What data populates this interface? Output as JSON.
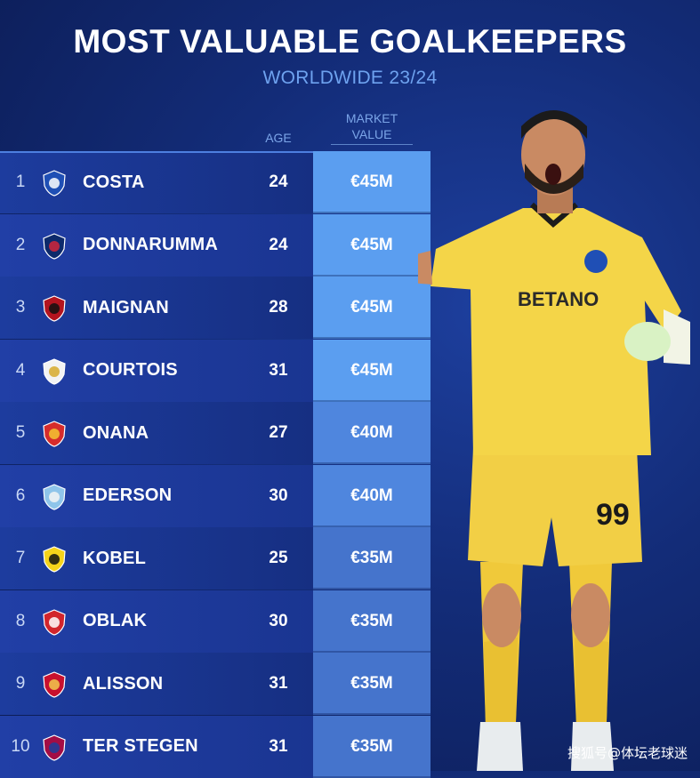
{
  "header": {
    "title": "MOST VALUABLE GOALKEEPERS",
    "subtitle": "WORLDWIDE 23/24"
  },
  "columns": {
    "age": "AGE",
    "market_value": "MARKET\nVALUE"
  },
  "chart_data": {
    "type": "table",
    "title": "MOST VALUABLE GOALKEEPERS",
    "subtitle": "WORLDWIDE 23/24",
    "columns": [
      "AGE",
      "MARKET VALUE"
    ],
    "rows": [
      {
        "rank": "1",
        "name": "COSTA",
        "club_icon": "porto-crest-icon",
        "age": "24",
        "value": "€45M",
        "value_num": 45
      },
      {
        "rank": "2",
        "name": "DONNARUMMA",
        "club_icon": "psg-crest-icon",
        "age": "24",
        "value": "€45M",
        "value_num": 45
      },
      {
        "rank": "3",
        "name": "MAIGNAN",
        "club_icon": "ac-milan-crest-icon",
        "age": "28",
        "value": "€45M",
        "value_num": 45
      },
      {
        "rank": "4",
        "name": "COURTOIS",
        "club_icon": "real-madrid-crest-icon",
        "age": "31",
        "value": "€45M",
        "value_num": 45
      },
      {
        "rank": "5",
        "name": "ONANA",
        "club_icon": "man-united-crest-icon",
        "age": "27",
        "value": "€40M",
        "value_num": 40
      },
      {
        "rank": "6",
        "name": "EDERSON",
        "club_icon": "man-city-crest-icon",
        "age": "30",
        "value": "€40M",
        "value_num": 40
      },
      {
        "rank": "7",
        "name": "KOBEL",
        "club_icon": "dortmund-crest-icon",
        "age": "25",
        "value": "€35M",
        "value_num": 35
      },
      {
        "rank": "8",
        "name": "OBLAK",
        "club_icon": "atletico-crest-icon",
        "age": "30",
        "value": "€35M",
        "value_num": 35
      },
      {
        "rank": "9",
        "name": "ALISSON",
        "club_icon": "liverpool-crest-icon",
        "age": "31",
        "value": "€35M",
        "value_num": 35
      },
      {
        "rank": "10",
        "name": "TER STEGEN",
        "club_icon": "barcelona-crest-icon",
        "age": "31",
        "value": "€35M",
        "value_num": 35
      }
    ]
  },
  "colors": {
    "value_45": "#5b9ef0",
    "value_40": "#4f86de",
    "value_35": "#4574cc",
    "kit_yellow": "#f4d548",
    "accent_text": "#6ea2ef"
  },
  "watermark": "搜狐号@体坛老球迷"
}
